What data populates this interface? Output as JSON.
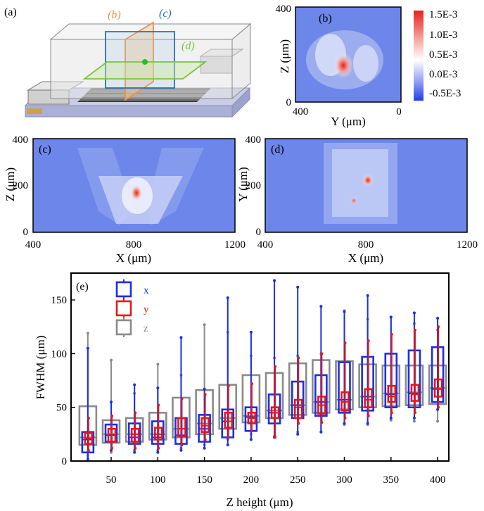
{
  "panels": {
    "a": {
      "label": "(a)",
      "plane_labels": [
        "(b)",
        "(c)",
        "(d)"
      ],
      "plane_colors": [
        "#e8924a",
        "#2a6fb5",
        "#7cc243"
      ]
    },
    "b": {
      "label": "(b)",
      "xlabel": "Y (μm)",
      "ylabel": "Z (μm)",
      "xticks": [
        "400",
        "0"
      ],
      "yticks": [
        "400",
        "0"
      ]
    },
    "c": {
      "label": "(c)",
      "xlabel": "X (μm)",
      "ylabel": "Z (μm)",
      "xticks": [
        "400",
        "800",
        "1200"
      ],
      "yticks": [
        "400",
        "200",
        "0"
      ]
    },
    "d": {
      "label": "(d)",
      "xlabel": "X (μm)",
      "ylabel": "Y (μm)",
      "xticks": [
        "400",
        "800",
        "1200"
      ],
      "yticks": [
        "400",
        "200",
        "0"
      ]
    },
    "colorbar": {
      "ticks": [
        "1.5E-3",
        "1.0E-3",
        "0.5E-3",
        "0.0E-3",
        "-0.5E-3"
      ],
      "colors": [
        "#e5231b",
        "#ffffff",
        "#1f3fe8"
      ]
    }
  },
  "chart_data": {
    "type": "box",
    "label": "(e)",
    "xlabel": "Z height (μm)",
    "ylabel": "FWHM (μm)",
    "xlim": [
      7,
      412
    ],
    "ylim": [
      0,
      175
    ],
    "xticks": [
      50,
      100,
      150,
      200,
      250,
      300,
      350,
      400
    ],
    "yticks": [
      0,
      50,
      100,
      150
    ],
    "categories": [
      25,
      50,
      75,
      100,
      125,
      150,
      175,
      200,
      225,
      250,
      275,
      300,
      325,
      350,
      375,
      400
    ],
    "series": [
      {
        "name": "x",
        "color": "#1a2ee6",
        "offset": 0,
        "width": 16,
        "q1": [
          8,
          18,
          16,
          16,
          16,
          18,
          22,
          28,
          35,
          40,
          42,
          45,
          47,
          50,
          50,
          55
        ],
        "median": [
          20,
          24,
          22,
          22,
          24,
          30,
          37,
          41,
          45,
          52,
          55,
          57,
          60,
          62,
          63,
          67
        ],
        "q3": [
          27,
          34,
          35,
          37,
          40,
          43,
          48,
          50,
          62,
          74,
          80,
          92,
          97,
          100,
          103,
          106
        ],
        "min": [
          2,
          10,
          8,
          8,
          10,
          12,
          15,
          20,
          22,
          25,
          27,
          35,
          35,
          40,
          40,
          48
        ],
        "max": [
          105,
          55,
          71,
          68,
          115,
          67,
          152,
          120,
          168,
          162,
          144,
          139,
          154,
          134,
          138,
          133
        ]
      },
      {
        "name": "y",
        "color": "#e51818",
        "offset": 1,
        "width": 10,
        "q1": [
          16,
          18,
          18,
          20,
          23,
          27,
          31,
          35,
          40,
          40,
          44,
          47,
          50,
          55,
          56,
          60
        ],
        "median": [
          21,
          25,
          25,
          25,
          30,
          33,
          37,
          40,
          45,
          50,
          52,
          55,
          57,
          60,
          62,
          67
        ],
        "q3": [
          26,
          30,
          30,
          31,
          40,
          40,
          45,
          45,
          50,
          57,
          60,
          64,
          67,
          70,
          71,
          76
        ],
        "min": [
          10,
          12,
          12,
          12,
          15,
          20,
          22,
          28,
          22,
          35,
          36,
          40,
          42,
          45,
          45,
          50
        ],
        "max": [
          40,
          42,
          45,
          52,
          58,
          62,
          70,
          72,
          88,
          96,
          100,
          110,
          112,
          118,
          122,
          125
        ]
      },
      {
        "name": "z",
        "color": "#8a8a8a",
        "offset": 0,
        "width": 24,
        "q1": [
          15,
          17,
          18,
          20,
          22,
          25,
          30,
          36,
          40,
          43,
          45,
          48,
          50,
          51,
          52,
          53
        ],
        "median": [
          22,
          25,
          25,
          25,
          30,
          35,
          40,
          42,
          47,
          52,
          55,
          57,
          60,
          63,
          64,
          68
        ],
        "q3": [
          51,
          38,
          40,
          45,
          59,
          66,
          71,
          80,
          82,
          91,
          94,
          93,
          90,
          89,
          89,
          89
        ],
        "min": [
          5,
          8,
          10,
          10,
          12,
          15,
          20,
          25,
          23,
          27,
          27,
          34,
          34,
          38,
          37,
          37
        ],
        "max": [
          119,
          94,
          63,
          90,
          80,
          127,
          120,
          98,
          96,
          98,
          100,
          140,
          132,
          134,
          128,
          122
        ]
      }
    ]
  }
}
